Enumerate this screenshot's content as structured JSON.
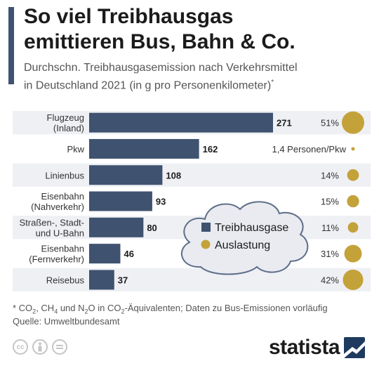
{
  "header": {
    "title": "So viel Treibhausgas\nemittieren Bus, Bahn & Co.",
    "subtitle": "Durchschn. Treibhausgasemission nach Verkehrsmittel\nin Deutschland 2021 (in g pro Personenkilometer)",
    "subtitle_marker": "*"
  },
  "footnote": {
    "text_parts": [
      "* CO",
      "2",
      ", CH",
      "4",
      " und N",
      "2",
      "O in CO",
      "2",
      "-Äquivalenten; Daten zu Bus-Emissionen vorläufig"
    ]
  },
  "source": "Quelle: Umweltbundesamt",
  "license_icons": [
    "cc-icon",
    "attribution-icon",
    "no-derivatives-icon"
  ],
  "brand": {
    "name": "statista"
  },
  "colors": {
    "bar": "#3f5270",
    "bubble": "#c4a23a",
    "row_band": "#eef0f4",
    "cloud_fill": "#e9ebf0",
    "cloud_stroke": "#5e6e89"
  },
  "chart_data": {
    "type": "bar",
    "orientation": "horizontal",
    "categories": [
      "Flugzeug\n(Inland)",
      "Pkw",
      "Linienbus",
      "Eisenbahn\n(Nahverkehr)",
      "Straßen-, Stadt-\nund U-Bahn",
      "Eisenbahn\n(Fernverkehr)",
      "Reisebus"
    ],
    "series": [
      {
        "name": "Treibhausgase",
        "values": [
          271,
          162,
          108,
          93,
          80,
          46,
          37
        ]
      },
      {
        "name": "Auslastung",
        "values": [
          51,
          null,
          14,
          15,
          11,
          31,
          42
        ],
        "labels": [
          "51%",
          "1,4 Personen/Pkw",
          "14%",
          "15%",
          "11%",
          "31%",
          "42%"
        ]
      }
    ],
    "xlim": [
      0,
      271
    ],
    "legend": {
      "items": [
        "Treibhausgase",
        "Auslastung"
      ],
      "position": "center-right"
    }
  }
}
